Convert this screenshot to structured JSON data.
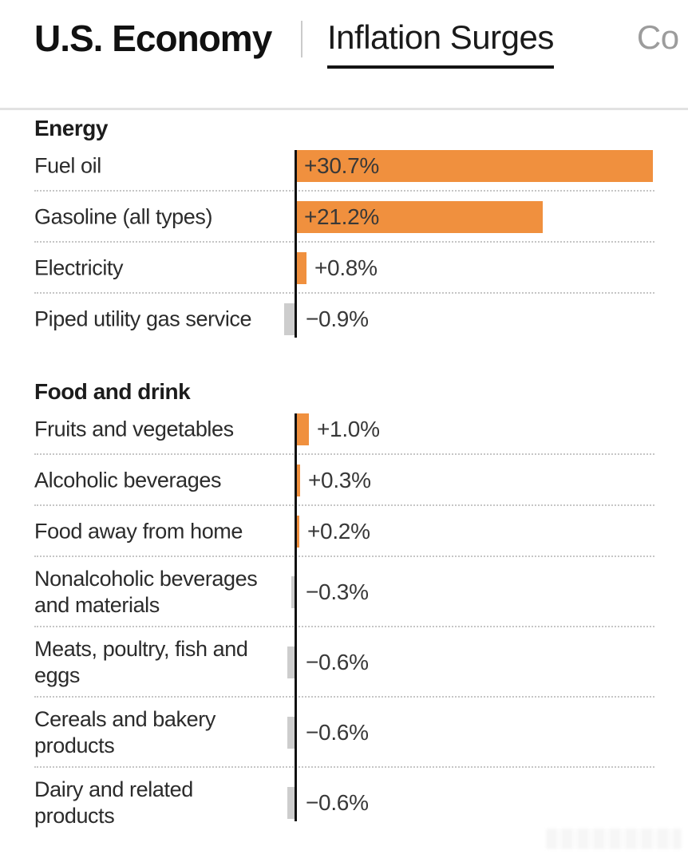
{
  "header": {
    "kicker": "U.S. Economy",
    "tabs": [
      {
        "label": "Inflation Surges",
        "active": true
      },
      {
        "label": "Co",
        "active": false,
        "note": "clipped at right edge of screen"
      }
    ]
  },
  "chart_data": {
    "type": "bar",
    "orientation": "horizontal",
    "unit": "%",
    "axis_baseline": 0,
    "xlim": [
      -1.5,
      30.7
    ],
    "grid": "dotted row separators",
    "positive_color": "#f0903e",
    "negative_color": "#cdcdcd",
    "axis_color": "#111111",
    "sections": [
      {
        "title": "Energy",
        "rows": [
          {
            "label": "Fuel oil",
            "value": 30.7,
            "display": "+30.7%"
          },
          {
            "label": "Gasoline (all types)",
            "value": 21.2,
            "display": "+21.2%"
          },
          {
            "label": "Electricity",
            "value": 0.8,
            "display": "+0.8%"
          },
          {
            "label": "Piped utility gas service",
            "value": -0.9,
            "display": "−0.9%"
          }
        ]
      },
      {
        "title": "Food and drink",
        "rows": [
          {
            "label": "Fruits and vegetables",
            "value": 1.0,
            "display": "+1.0%"
          },
          {
            "label": "Alcoholic beverages",
            "value": 0.3,
            "display": "+0.3%"
          },
          {
            "label": "Food away from home",
            "value": 0.2,
            "display": "+0.2%"
          },
          {
            "label": "Nonalcoholic beverages and materials",
            "value": -0.3,
            "display": "−0.3%"
          },
          {
            "label": "Meats, poultry, fish and eggs",
            "value": -0.6,
            "display": "−0.6%"
          },
          {
            "label": "Cereals and bakery products",
            "value": -0.6,
            "display": "−0.6%"
          },
          {
            "label": "Dairy and related products",
            "value": -0.6,
            "display": "−0.6%"
          }
        ]
      }
    ]
  }
}
